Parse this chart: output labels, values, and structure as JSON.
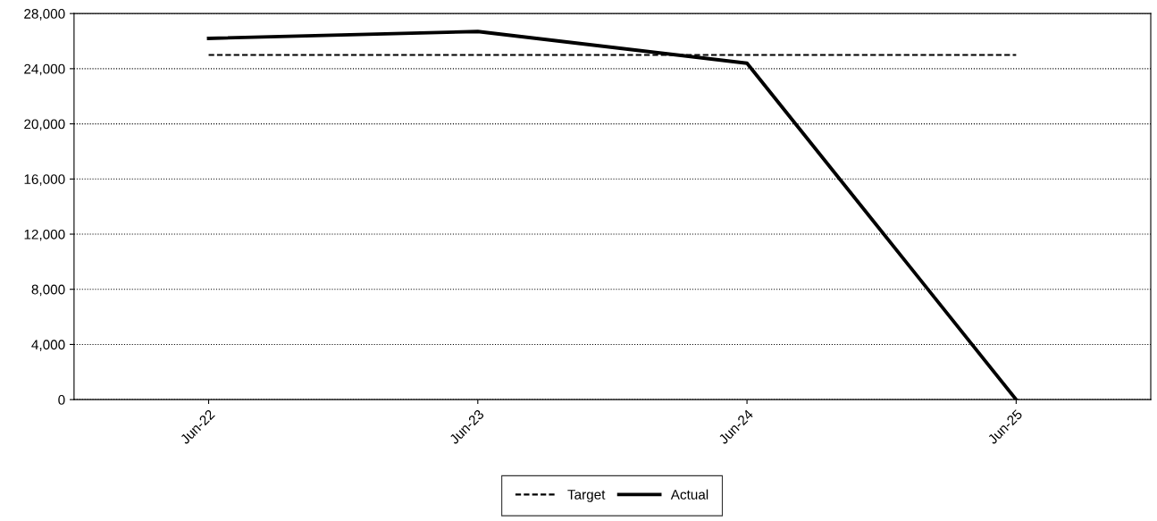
{
  "chart_data": {
    "type": "line",
    "categories": [
      "Jun-22",
      "Jun-23",
      "Jun-24",
      "Jun-25"
    ],
    "series": [
      {
        "name": "Target",
        "color": "#000000",
        "line_style": "dashed",
        "values": [
          25000,
          25000,
          25000,
          25000
        ]
      },
      {
        "name": "Actual",
        "color": "#000000",
        "line_style": "solid",
        "values": [
          26200,
          26700,
          24400,
          0
        ]
      }
    ],
    "ylim": [
      0,
      28000
    ],
    "yticks": [
      {
        "value": 0,
        "label": "0"
      },
      {
        "value": 4000,
        "label": "4,000"
      },
      {
        "value": 8000,
        "label": "8,000"
      },
      {
        "value": 12000,
        "label": "12,000"
      },
      {
        "value": 16000,
        "label": "16,000"
      },
      {
        "value": 20000,
        "label": "20,000"
      },
      {
        "value": 24000,
        "label": "24,000"
      },
      {
        "value": 28000,
        "label": "28,000"
      }
    ],
    "grid": "y",
    "legend": "bottom",
    "marker": "none"
  }
}
